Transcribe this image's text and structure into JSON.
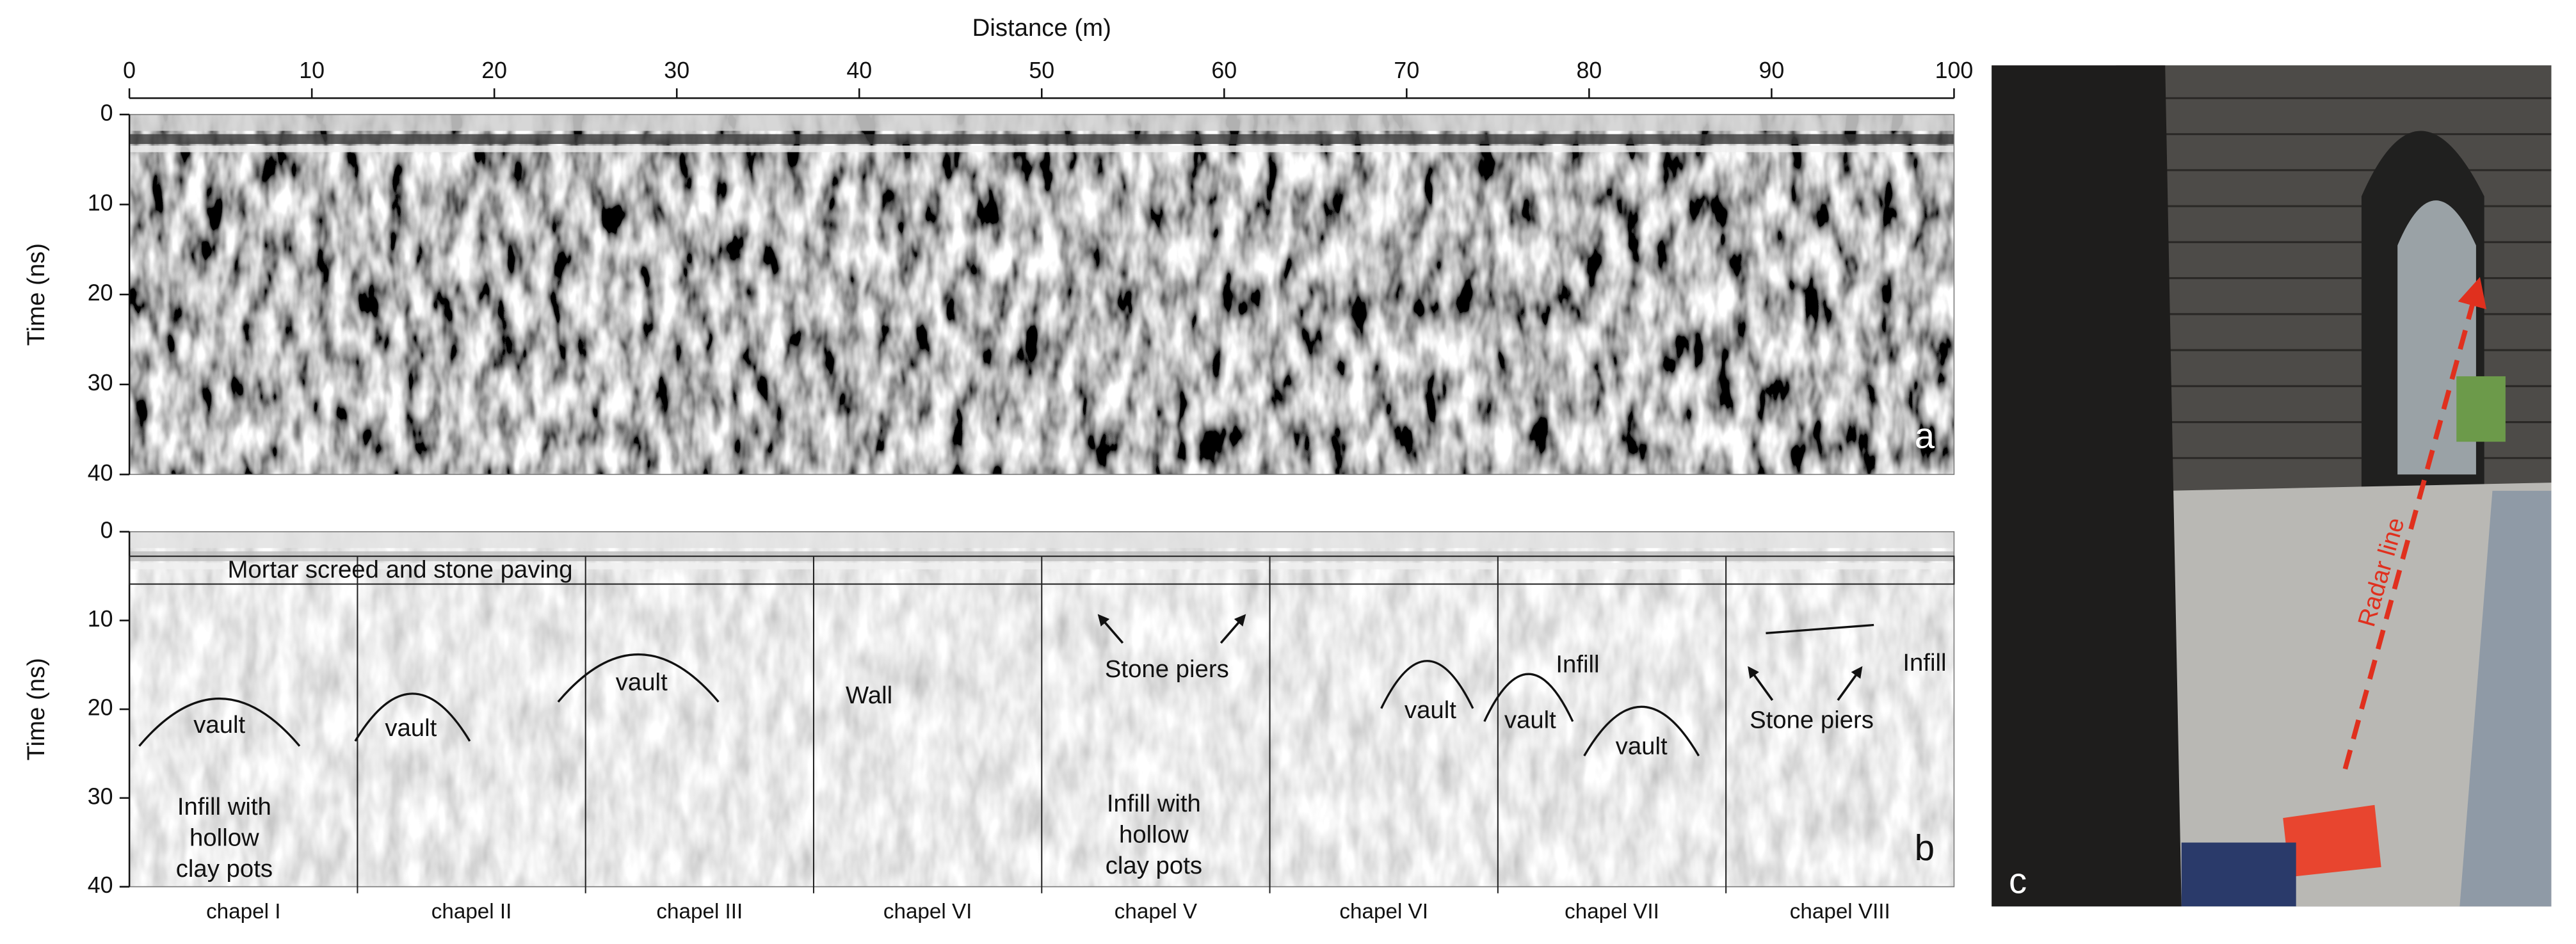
{
  "chart_data": [
    {
      "type": "radargram",
      "xlabel": "Distance (m)",
      "ylabel": "Time (ns)",
      "xlim": [
        0,
        100
      ],
      "xticks": [
        0,
        10,
        20,
        30,
        40,
        50,
        60,
        70,
        80,
        90,
        100
      ],
      "ylim": [
        0,
        40
      ],
      "yticks": [
        0,
        10,
        20,
        30,
        40
      ],
      "y_inverted": true,
      "panel_label": "a"
    },
    {
      "type": "radargram",
      "ylabel": "Time (ns)",
      "xlim": [
        0,
        100
      ],
      "ylim": [
        0,
        40
      ],
      "yticks": [
        0,
        10,
        20,
        30,
        40
      ],
      "y_inverted": true,
      "panel_label": "b",
      "chapels": [
        "chapel I",
        "chapel II",
        "chapel III",
        "chapel VI",
        "chapel V",
        "chapel VI",
        "chapel VII",
        "chapel VIII"
      ],
      "annotations": [
        [
          "Mortar screed and stone paving"
        ],
        [
          "vault"
        ],
        [
          "vault"
        ],
        [
          "vault"
        ],
        [
          "Infill with",
          "hollow",
          "clay pots"
        ],
        [
          "Wall"
        ],
        [
          "Stone piers"
        ],
        [
          "Infill with",
          "hollow",
          "clay pots"
        ],
        [
          "vault"
        ],
        [
          "vault"
        ],
        [
          "Infill"
        ],
        [
          "vault"
        ],
        [
          "Stone piers"
        ],
        [
          "Infill"
        ]
      ]
    }
  ],
  "photo": {
    "panel_label": "c",
    "annotation": "Radar line"
  }
}
